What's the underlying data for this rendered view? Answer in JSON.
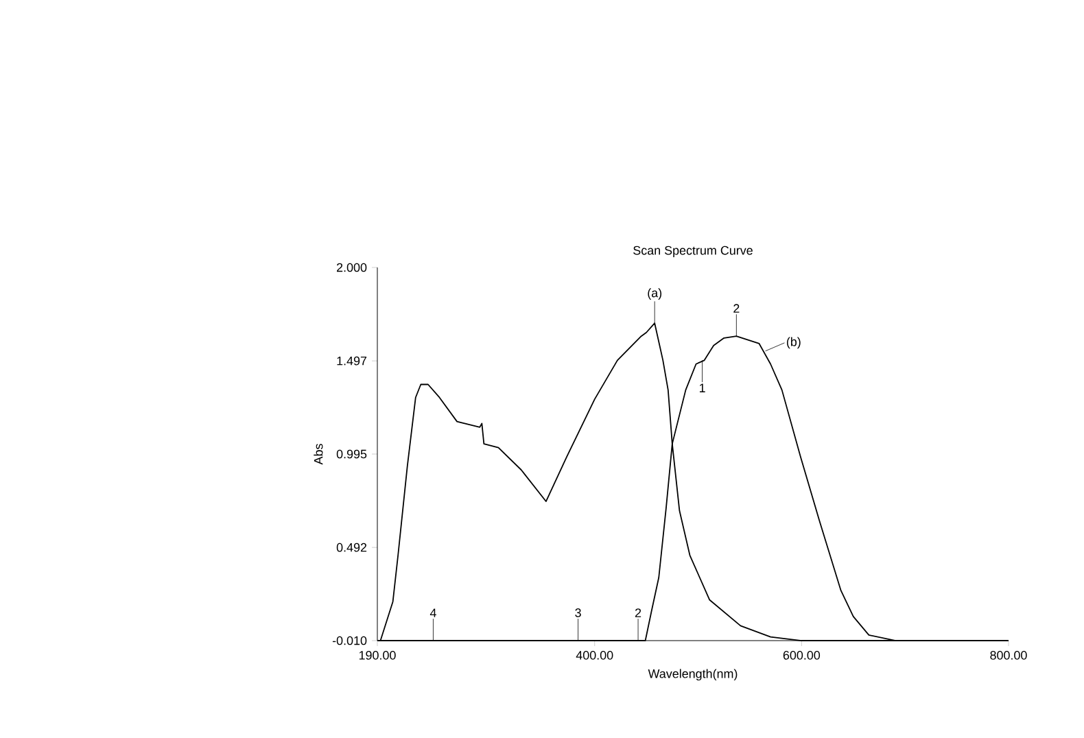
{
  "chart_data": {
    "type": "line",
    "title": "Scan Spectrum Curve",
    "xlabel": "Wavelength(nm)",
    "ylabel": "Abs",
    "xlim": [
      190,
      800
    ],
    "ylim": [
      -0.01,
      2.0
    ],
    "xticks": [
      {
        "value": 190,
        "label": "190.00"
      },
      {
        "value": 400,
        "label": "400.00"
      },
      {
        "value": 600,
        "label": "600.00"
      },
      {
        "value": 800,
        "label": "800.00"
      }
    ],
    "yticks": [
      {
        "value": -0.01,
        "label": "-0.010"
      },
      {
        "value": 0.492,
        "label": "0.492"
      },
      {
        "value": 0.995,
        "label": "0.995"
      },
      {
        "value": 1.497,
        "label": "1.497"
      },
      {
        "value": 2.0,
        "label": "2.000"
      }
    ],
    "series": [
      {
        "color": "#000000",
        "x": [
          190,
          193,
          205,
          210,
          219,
          227,
          232,
          239,
          250,
          267,
          289,
          291,
          293,
          307,
          329,
          353,
          373,
          400,
          422,
          445,
          450,
          458,
          466,
          471,
          475,
          482,
          492,
          511,
          541,
          570,
          600,
          700,
          800
        ],
        "values": [
          -0.01,
          -0.01,
          0.2,
          0.45,
          0.93,
          1.3,
          1.37,
          1.37,
          1.3,
          1.17,
          1.14,
          1.16,
          1.05,
          1.03,
          0.91,
          0.74,
          0.98,
          1.29,
          1.5,
          1.63,
          1.65,
          1.7,
          1.5,
          1.34,
          1.05,
          0.69,
          0.45,
          0.21,
          0.07,
          0.01,
          -0.01,
          -0.01,
          -0.01
        ]
      },
      {
        "color": "#000000",
        "x": [
          190,
          449,
          455,
          462,
          469,
          475,
          488,
          498,
          506,
          515,
          525,
          537,
          559,
          570,
          581,
          599,
          617,
          638,
          650,
          665,
          691,
          750,
          800
        ],
        "values": [
          -0.01,
          -0.01,
          0.15,
          0.33,
          0.7,
          1.05,
          1.34,
          1.48,
          1.5,
          1.58,
          1.62,
          1.63,
          1.59,
          1.48,
          1.34,
          0.98,
          0.64,
          0.26,
          0.12,
          0.02,
          -0.01,
          -0.01,
          -0.01
        ]
      }
    ],
    "annotations": [
      {
        "text": "4",
        "x": 244,
        "y": -0.01
      },
      {
        "text": "3",
        "x": 384,
        "y": -0.01
      },
      {
        "text": "2",
        "x": 442,
        "y": -0.01
      },
      {
        "text": "(a)",
        "x": 458,
        "y": 1.7
      },
      {
        "text": "(b)",
        "x": 565,
        "y": 1.55
      },
      {
        "text": "1",
        "x": 504,
        "y": 1.5
      },
      {
        "text": "2",
        "x": 537,
        "y": 1.63
      }
    ]
  }
}
